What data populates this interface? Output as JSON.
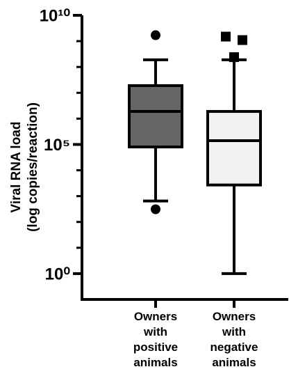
{
  "chart_data": {
    "type": "box",
    "ylabel": [
      "Viral RNA load",
      "(log copies/reaction)"
    ],
    "categories": [
      "Owners with positive animals",
      "Owners with negative animals"
    ],
    "log_scale": true,
    "ylim": [
      0.1,
      10000000000
    ],
    "yticks": [
      {
        "value": 1,
        "label": "10⁰"
      },
      {
        "value": 100000,
        "label": "10⁵"
      },
      {
        "value": 10000000000,
        "label": "10¹⁰"
      }
    ],
    "yminorticks": [
      10,
      100,
      1000,
      10000,
      1000000,
      10000000,
      100000000,
      1000000000
    ],
    "boxes": [
      {
        "whisker_low": 650,
        "q1": 80000,
        "median": 1900000,
        "q3": 19000000,
        "whisker_high": 190000000,
        "outliers": [
          1700000000,
          310
        ],
        "color": "#666666",
        "marker": "circle"
      },
      {
        "whisker_low": 1,
        "q1": 2700,
        "median": 140000,
        "q3": 1900000,
        "whisker_high": 190000000,
        "outliers": [
          1500000000,
          1100000000,
          240000000
        ],
        "color": "#f2f2f2",
        "marker": "square"
      }
    ]
  }
}
